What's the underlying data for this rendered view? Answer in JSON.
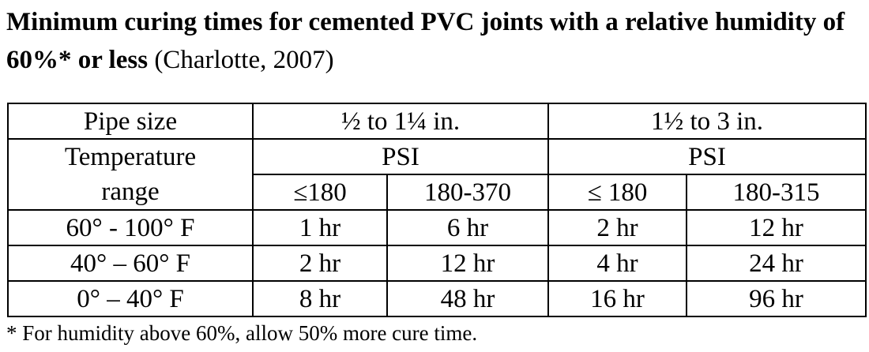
{
  "title": {
    "bold": "Minimum curing times for cemented PVC joints with a relative humidity of 60%* or less",
    "citation": "(Charlotte, 2007)"
  },
  "table": {
    "pipe_size_label": "Pipe size",
    "size_groups": [
      "½ to 1¼ in.",
      "1½ to 3 in."
    ],
    "temperature_label_line1": "Temperature",
    "temperature_label_line2": "range",
    "psi_label": "PSI",
    "psi_columns": [
      "≤180",
      "180-370",
      "≤ 180",
      "180-315"
    ],
    "rows": [
      {
        "range": "60° - 100° F",
        "values": [
          "1 hr",
          "6 hr",
          "2 hr",
          "12 hr"
        ]
      },
      {
        "range": "40° – 60° F",
        "values": [
          "2 hr",
          "12 hr",
          "4 hr",
          "24 hr"
        ]
      },
      {
        "range": "0° – 40° F",
        "values": [
          "8 hr",
          "48 hr",
          "16 hr",
          "96 hr"
        ]
      }
    ]
  },
  "footnote": "* For humidity above 60%, allow 50% more cure time."
}
